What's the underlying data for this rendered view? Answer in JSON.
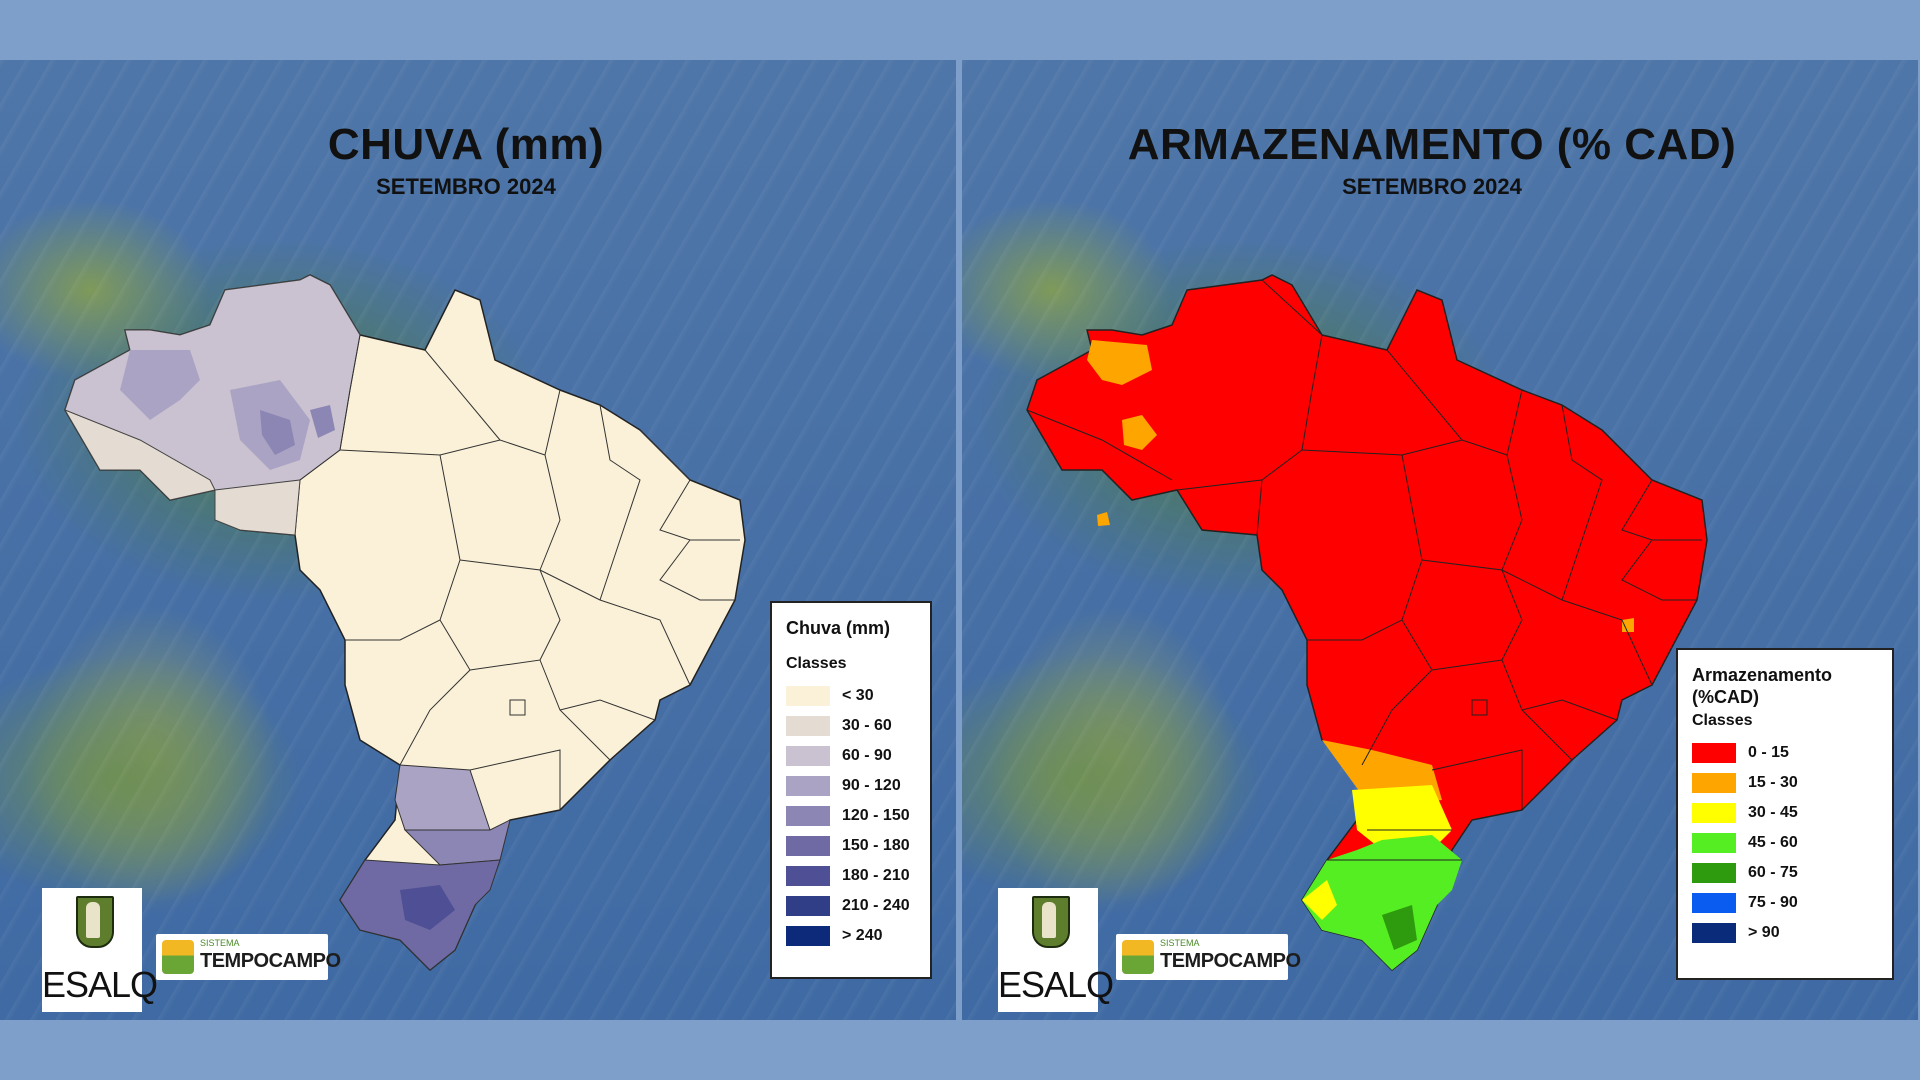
{
  "left_map": {
    "title": "CHUVA (mm)",
    "subtitle": "SETEMBRO 2024",
    "legend": {
      "title": "Chuva (mm)",
      "classes_label": "Classes",
      "items": [
        {
          "label": "< 30",
          "color": "#fbf1d8"
        },
        {
          "label": "30 - 60",
          "color": "#e4dcd2"
        },
        {
          "label": "60 - 90",
          "color": "#cac2d0"
        },
        {
          "label": "90 - 120",
          "color": "#aaa3c4"
        },
        {
          "label": "120 - 150",
          "color": "#8c86b4"
        },
        {
          "label": "150 - 180",
          "color": "#6f6aa4"
        },
        {
          "label": "180 - 210",
          "color": "#4e4f94"
        },
        {
          "label": "210 - 240",
          "color": "#2f3e86"
        },
        {
          "label": "> 240",
          "color": "#0d2a7a"
        }
      ]
    }
  },
  "right_map": {
    "title": "ARMAZENAMENTO (% CAD)",
    "subtitle": "SETEMBRO 2024",
    "legend": {
      "title_line1": "Armazenamento",
      "title_line2": "(%CAD)",
      "classes_label": "Classes",
      "items": [
        {
          "label": "0 - 15",
          "color": "#ff0000"
        },
        {
          "label": "15 - 30",
          "color": "#ffa500"
        },
        {
          "label": "30 - 45",
          "color": "#ffff00"
        },
        {
          "label": "45 - 60",
          "color": "#55ee22"
        },
        {
          "label": "60 - 75",
          "color": "#2e9a0e"
        },
        {
          "label": "75 - 90",
          "color": "#0a5cf0"
        },
        {
          "label": "> 90",
          "color": "#0a2a7a"
        }
      ]
    }
  },
  "logos": {
    "esalq": "ESALQ",
    "tempocampo_small": "SISTEMA",
    "tempocampo": "TEMPOCAMPO"
  }
}
